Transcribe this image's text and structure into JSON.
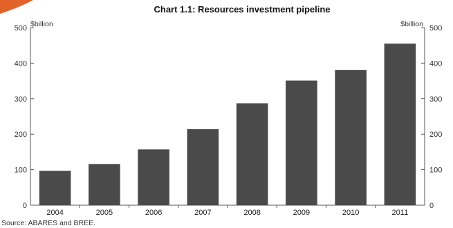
{
  "colors": {
    "bar": "#4a4a4a",
    "axis": "#555555",
    "corner_accent": "#e2632a",
    "background": "#ffffff"
  },
  "chart_data": {
    "type": "bar",
    "title": "Chart 1.1: Resources investment pipeline",
    "ylabel_left": "$billion",
    "ylabel_right": "$billion",
    "categories": [
      "2004",
      "2005",
      "2006",
      "2007",
      "2008",
      "2009",
      "2010",
      "2011"
    ],
    "values": [
      97,
      116,
      157,
      214,
      287,
      351,
      381,
      455
    ],
    "ylim": [
      0,
      500
    ],
    "yticks": [
      0,
      100,
      200,
      300,
      400,
      500
    ],
    "grid": false,
    "dual_axis_labels": true
  },
  "source": "Source: ABARES and BREE."
}
